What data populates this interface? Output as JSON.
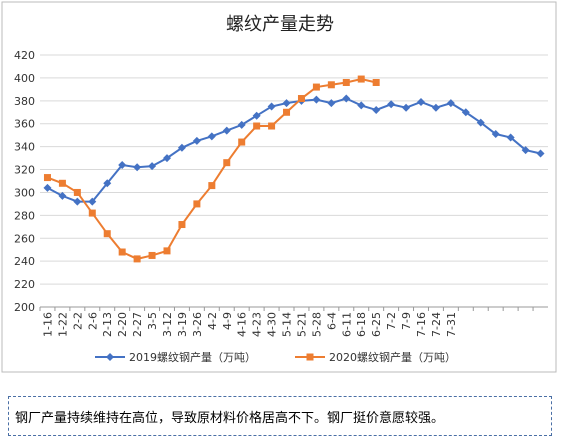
{
  "chart_data": {
    "type": "line",
    "title": "螺纹产量走势",
    "categories": [
      "1-16",
      "1-22",
      "2-2",
      "2-6",
      "2-13",
      "2-20",
      "2-27",
      "3-5",
      "3-12",
      "3-19",
      "3-26",
      "4-2",
      "4-9",
      "4-16",
      "4-23",
      "4-30",
      "5-14",
      "5-21",
      "5-28",
      "6-4",
      "6-11",
      "6-18",
      "6-25",
      "7-2",
      "7-9",
      "7-16",
      "7-24",
      "7-31",
      null,
      null,
      null,
      null,
      null,
      null
    ],
    "series": [
      {
        "name": "2019螺纹钢产量（万吨）",
        "color": "#4472c4",
        "marker": "diamond",
        "values": [
          304,
          297,
          292,
          292,
          308,
          324,
          322,
          323,
          330,
          339,
          345,
          349,
          354,
          359,
          367,
          375,
          378,
          380,
          381,
          378,
          382,
          376,
          372,
          377,
          374,
          379,
          374,
          378,
          370,
          361,
          351,
          348,
          337,
          334
        ]
      },
      {
        "name": "2020螺纹钢产量（万吨）",
        "color": "#ed7d31",
        "marker": "square",
        "values": [
          313,
          308,
          300,
          282,
          264,
          248,
          242,
          245,
          249,
          272,
          290,
          306,
          326,
          344,
          358,
          358,
          370,
          382,
          392,
          394,
          396,
          399,
          396,
          null,
          null,
          null,
          null,
          null,
          null,
          null,
          null,
          null,
          null,
          null
        ]
      }
    ],
    "ylim": [
      200,
      420
    ],
    "yticks": [
      200,
      220,
      240,
      260,
      280,
      300,
      320,
      340,
      360,
      380,
      400,
      420
    ],
    "grid": true,
    "legend": "bottom"
  },
  "note": "钢厂产量持续维持在高位，导致原材料价格居高不下。钢厂挺价意愿较强。"
}
